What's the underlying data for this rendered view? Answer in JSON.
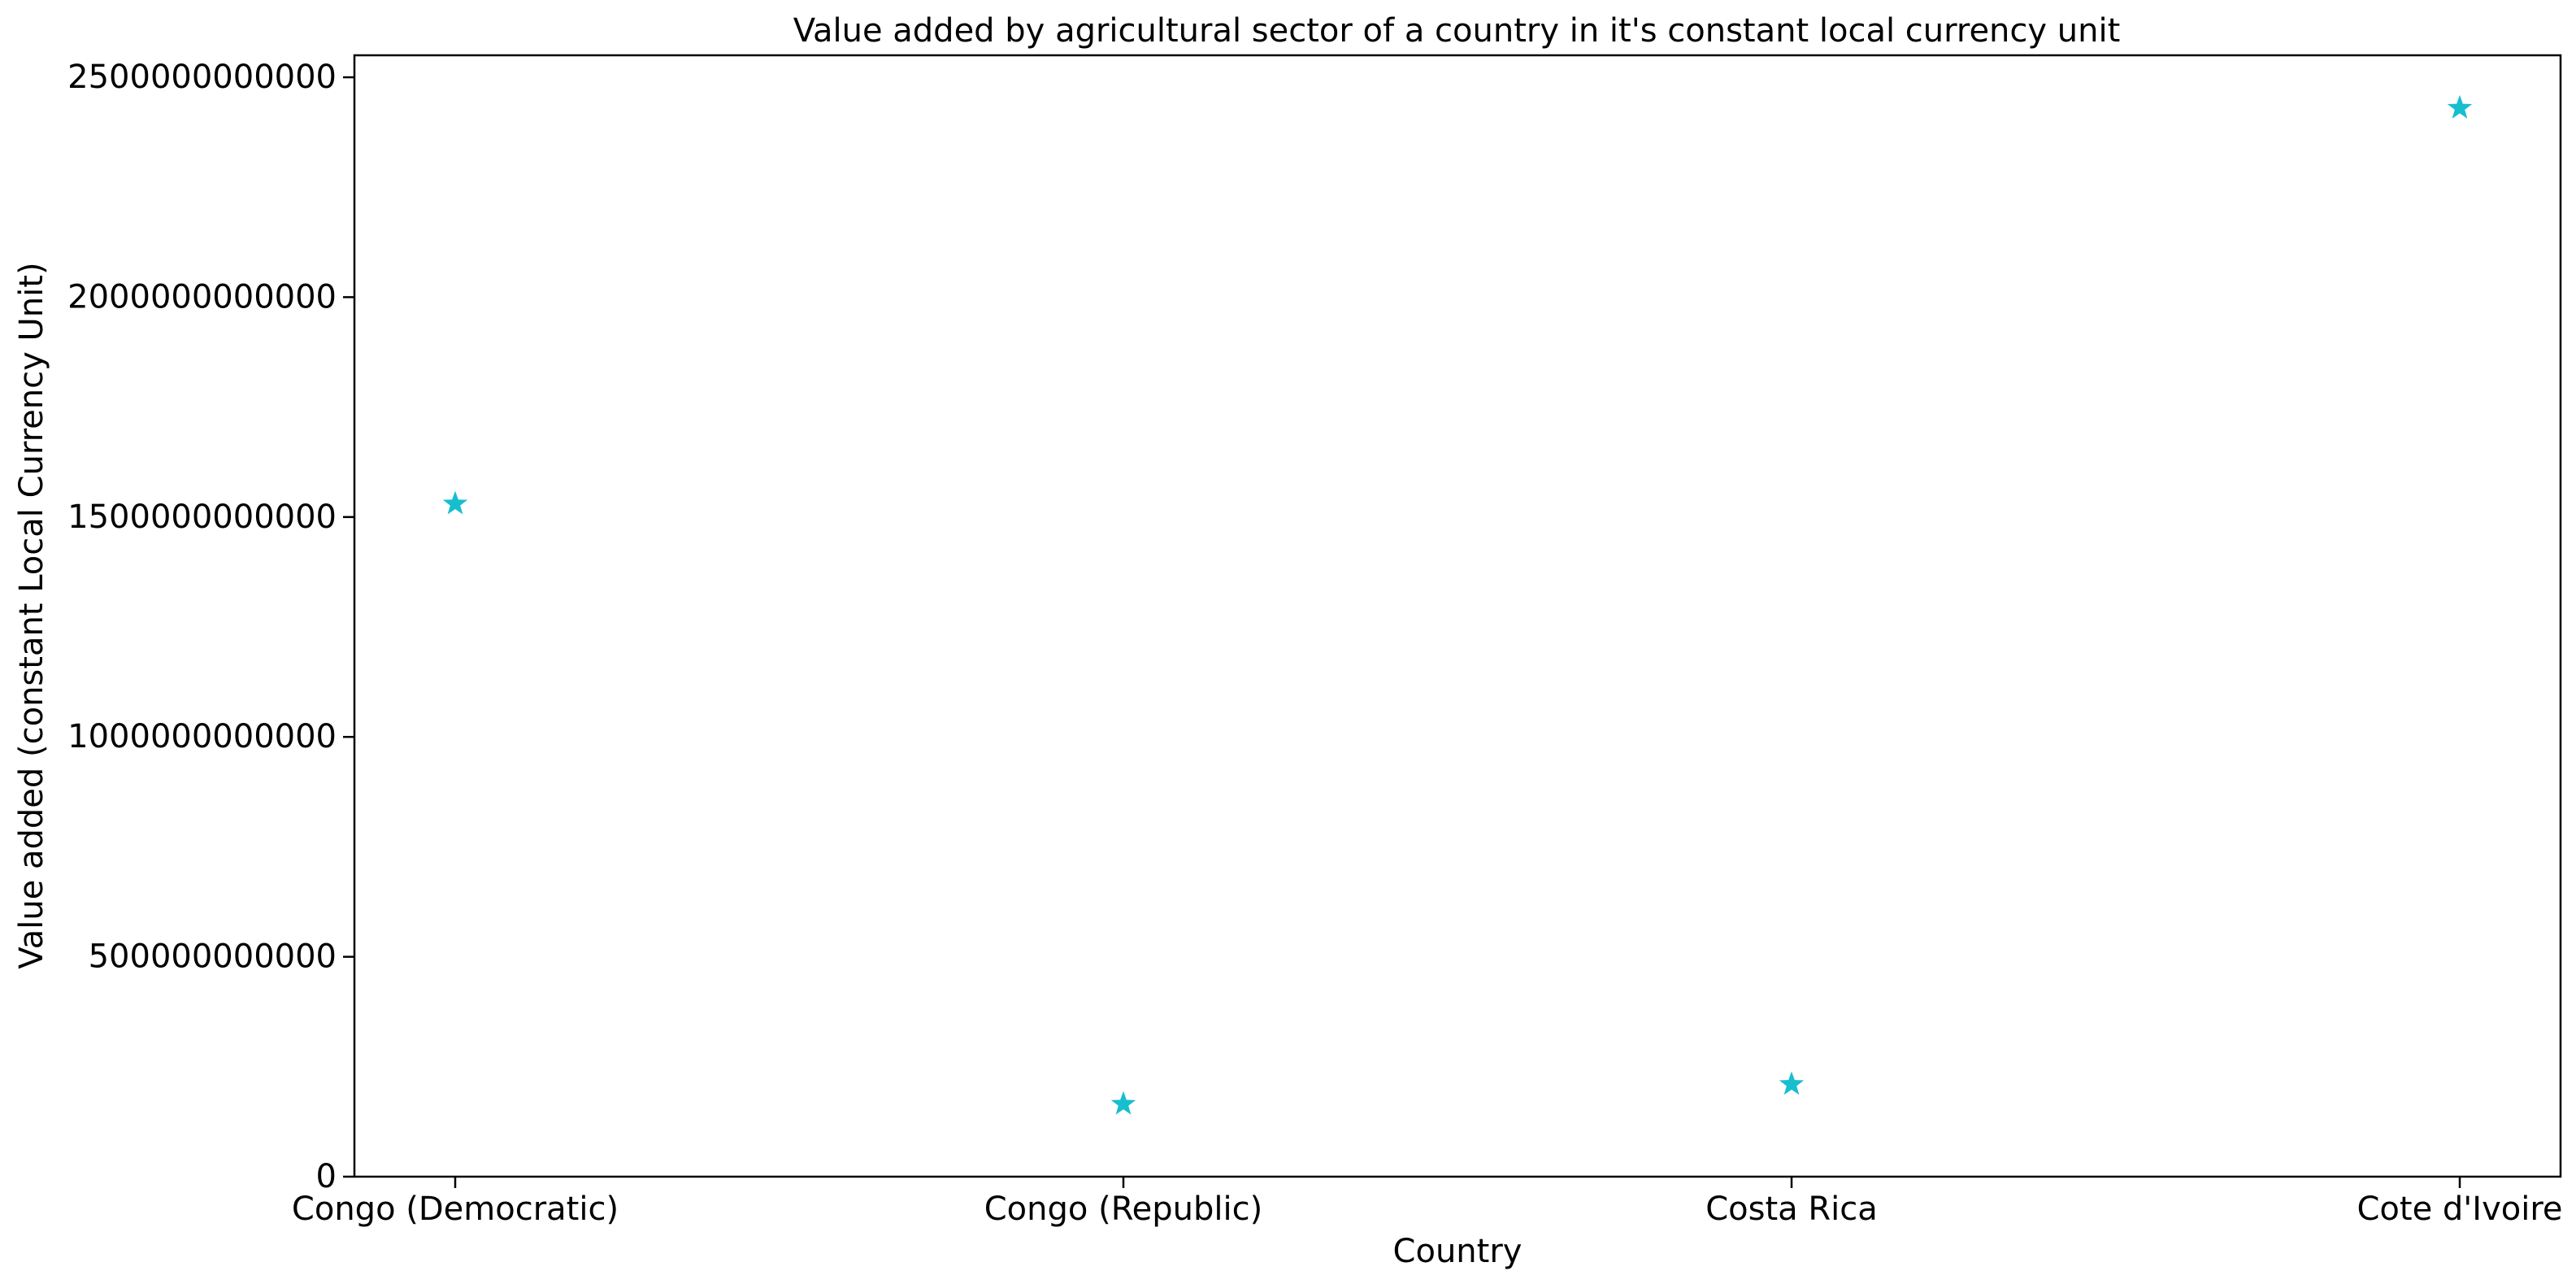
{
  "chart_data": {
    "type": "scatter",
    "title": "Value added by agricultural sector of a country in it's constant local currency unit",
    "xlabel": "Country",
    "ylabel": "Value added (constant Local Currency Unit)",
    "categories": [
      "Congo (Democratic)",
      "Congo (Republic)",
      "Costa Rica",
      "Cote d'Ivoire"
    ],
    "values": [
      1530000000000,
      165000000000,
      210000000000,
      2430000000000
    ],
    "yticks": [
      0,
      500000000000,
      1000000000000,
      1500000000000,
      2000000000000,
      2500000000000
    ],
    "ytick_labels": [
      "0",
      "500000000000",
      "1000000000000",
      "1500000000000",
      "2000000000000",
      "2500000000000"
    ],
    "ylim": [
      0,
      2550000000000
    ],
    "marker": "star",
    "marker_color": "#17becf",
    "grid": false,
    "legend": "none"
  }
}
